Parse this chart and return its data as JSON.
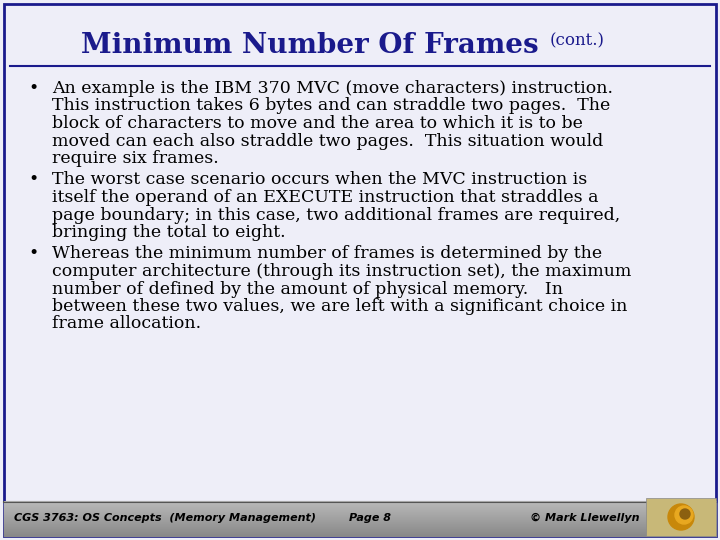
{
  "title_main": "Minimum Number Of Frames",
  "title_cont": "(cont.)",
  "title_color": "#1a1a8c",
  "bg_color": "#eeeef8",
  "footer_bg_top": "#888888",
  "footer_bg_bottom": "#b0b0b0",
  "border_color": "#1a1a8c",
  "text_color": "#000000",
  "footer_text_color": "#000000",
  "title_fontsize": 20,
  "cont_fontsize": 12,
  "body_fontsize": 12.5,
  "footer_fontsize": 8,
  "bullet1_lines": [
    "An example is the IBM 370 MVC (move characters) instruction.",
    "This instruction takes 6 bytes and can straddle two pages.  The",
    "block of characters to move and the area to which it is to be",
    "moved can each also straddle two pages.  This situation would",
    "require six frames."
  ],
  "bullet2_lines": [
    "The worst case scenario occurs when the MVC instruction is",
    "itself the operand of an EXECUTE instruction that straddles a",
    "page boundary; in this case, two additional frames are required,",
    "bringing the total to eight."
  ],
  "bullet3_lines": [
    "Whereas the minimum number of frames is determined by the",
    "computer architecture (through its instruction set), the maximum",
    "number of defined by the amount of physical memory.   In",
    "between these two values, we are left with a significant choice in",
    "frame allocation."
  ],
  "footer_left": "CGS 3763: OS Concepts  (Memory Management)",
  "footer_mid": "Page 8",
  "footer_right": "© Mark Llewellyn",
  "logo_color1": "#c8880a",
  "logo_color2": "#e8a820"
}
